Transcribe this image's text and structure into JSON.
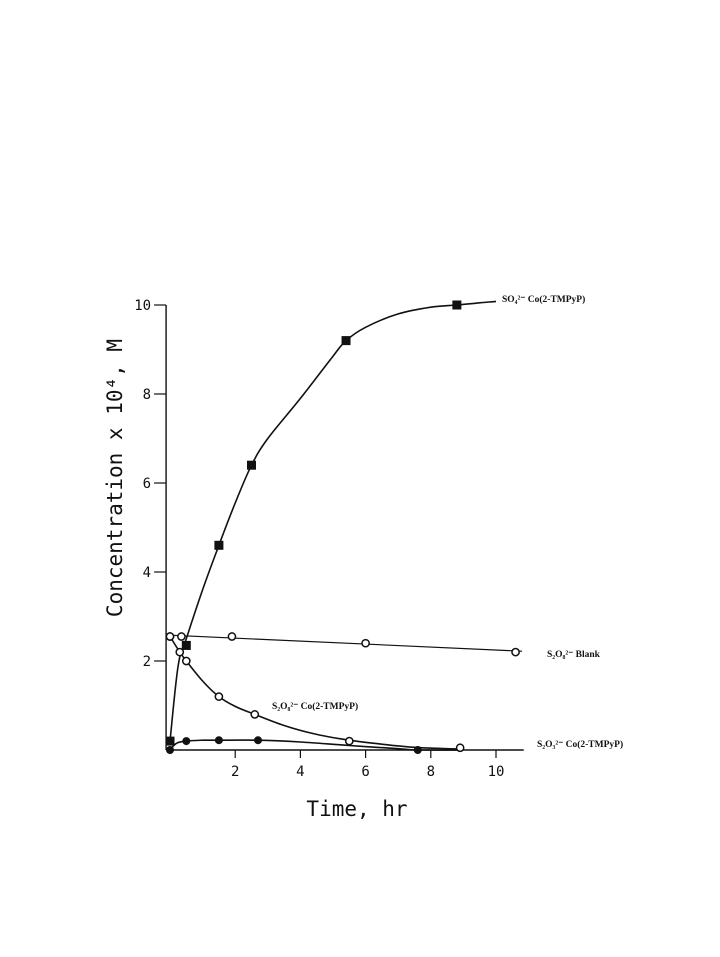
{
  "chart_data": {
    "type": "scatter",
    "title": "",
    "xlabel": "Time, hr",
    "ylabel": "Concentration x 10⁴, M",
    "xlim": [
      0,
      11
    ],
    "ylim": [
      0,
      10.3
    ],
    "xticks": [
      2,
      4,
      6,
      8,
      10
    ],
    "yticks": [
      2,
      4,
      6,
      8,
      10
    ],
    "grid": false,
    "legend": "labels placed next to each curve",
    "series": [
      {
        "name": "SO₄²⁻ Co(2-TMPyP)",
        "marker": "filled-square",
        "fit": "smooth",
        "x": [
          0,
          0.5,
          1.5,
          2.5,
          5.4,
          8.8
        ],
        "y": [
          0.2,
          2.35,
          4.6,
          6.4,
          9.2,
          10.0
        ],
        "curve_x": [
          0,
          0.25,
          0.5,
          1,
          1.5,
          2,
          2.5,
          3,
          4,
          5,
          5.4,
          6,
          7,
          8,
          8.8,
          9.5,
          10
        ],
        "curve_y": [
          0.2,
          1.9,
          2.5,
          3.6,
          4.6,
          5.55,
          6.4,
          7.0,
          7.9,
          8.85,
          9.2,
          9.5,
          9.8,
          9.95,
          10.0,
          10.05,
          10.08
        ]
      },
      {
        "name": "S₂O₈²⁻ Blank",
        "marker": "open-circle",
        "fit": "linear",
        "x": [
          0,
          0.35,
          1.9,
          6.0,
          10.6
        ],
        "y": [
          2.55,
          2.55,
          2.55,
          2.4,
          2.2
        ],
        "curve_x": [
          0,
          10.8
        ],
        "curve_y": [
          2.58,
          2.22
        ]
      },
      {
        "name": "S₂O₈²⁻ Co(2-TMPyP)",
        "marker": "open-circle",
        "fit": "smooth",
        "x": [
          0,
          0.3,
          0.5,
          1.5,
          2.6,
          5.5,
          8.9
        ],
        "y": [
          2.55,
          2.2,
          2.0,
          1.2,
          0.8,
          0.2,
          0.05
        ],
        "curve_x": [
          0,
          0.3,
          0.5,
          1,
          1.5,
          2,
          2.6,
          3.5,
          4.5,
          5.5,
          6.5,
          7.5,
          8.5,
          9
        ],
        "curve_y": [
          2.55,
          2.2,
          2.0,
          1.55,
          1.2,
          0.98,
          0.8,
          0.55,
          0.35,
          0.22,
          0.13,
          0.06,
          0.03,
          0.02
        ]
      },
      {
        "name": "S₂O₃²⁻ Co(2-TMPyP)",
        "marker": "filled-circle",
        "fit": "smooth",
        "x": [
          0,
          0.5,
          1.5,
          2.7,
          7.6
        ],
        "y": [
          0.0,
          0.2,
          0.22,
          0.22,
          0.0
        ],
        "curve_x": [
          0,
          0.2,
          0.5,
          1,
          1.5,
          2.7,
          4,
          5.5,
          7,
          7.6,
          9
        ],
        "curve_y": [
          0.0,
          0.15,
          0.2,
          0.22,
          0.22,
          0.22,
          0.18,
          0.1,
          0.03,
          0.0,
          0.0
        ]
      }
    ]
  }
}
